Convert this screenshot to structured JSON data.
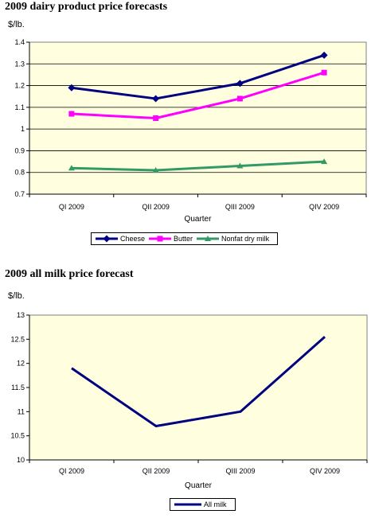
{
  "chart_data": [
    {
      "type": "line",
      "title": "2009 dairy product price forecasts",
      "ylabel": "$/lb.",
      "xlabel": "Quarter",
      "categories": [
        "QI 2009",
        "QII 2009",
        "QIII 2009",
        "QIV 2009"
      ],
      "ylim": [
        0.7,
        1.4
      ],
      "yticks": [
        "0.7",
        "0.8",
        "0.9",
        "1",
        "1.1",
        "1.2",
        "1.3",
        "1.4"
      ],
      "grid": true,
      "legend": "bottom",
      "background": "#ffffe0",
      "series": [
        {
          "name": "Cheese",
          "values": [
            1.19,
            1.14,
            1.21,
            1.34
          ],
          "color": "#000080",
          "marker": "diamond"
        },
        {
          "name": "Butter",
          "values": [
            1.07,
            1.05,
            1.14,
            1.26
          ],
          "color": "#ff00ff",
          "marker": "square"
        },
        {
          "name": "Nonfat dry milk",
          "values": [
            0.82,
            0.81,
            0.83,
            0.85
          ],
          "color": "#339966",
          "marker": "triangle"
        }
      ]
    },
    {
      "type": "line",
      "title": "2009 all milk price forecast",
      "ylabel": "$/lb.",
      "xlabel": "Quarter",
      "categories": [
        "QI 2009",
        "QII 2009",
        "QIII 2009",
        "QIV 2009"
      ],
      "ylim": [
        10,
        13
      ],
      "yticks": [
        "10",
        "10.5",
        "11",
        "11.5",
        "12",
        "12.5",
        "13"
      ],
      "grid": false,
      "legend": "bottom",
      "background": "#ffffe0",
      "series": [
        {
          "name": "All milk",
          "values": [
            11.9,
            10.7,
            11.0,
            12.55
          ],
          "color": "#000080",
          "marker": "none"
        }
      ]
    }
  ]
}
